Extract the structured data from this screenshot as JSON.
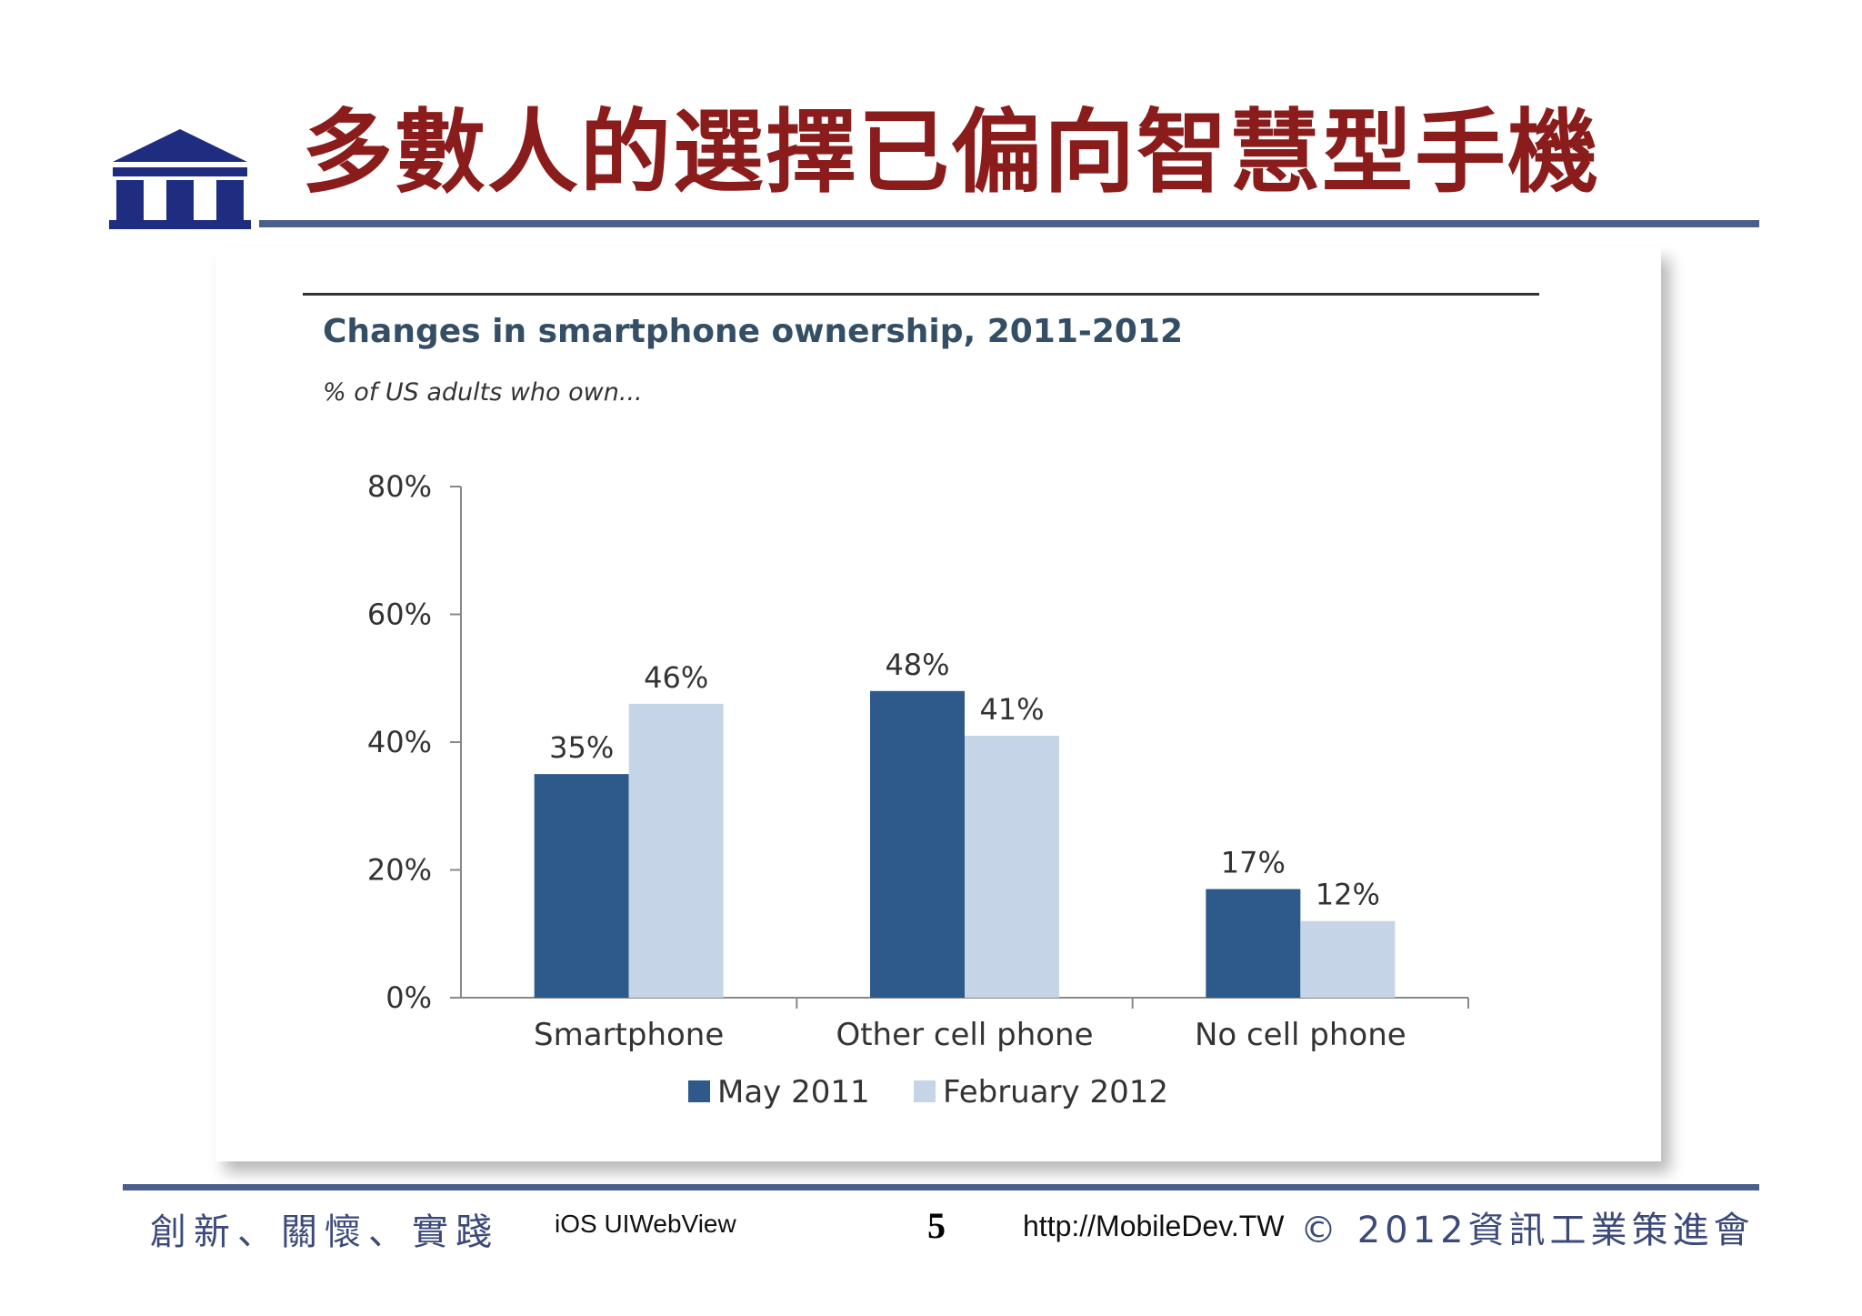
{
  "slide": {
    "title": "多數人的選擇已偏向智慧型手機",
    "logo_icon": "institute-building-logo",
    "accent_color": "#8b1c1c",
    "rule_color": "#4a5f8c"
  },
  "chart_data": {
    "type": "bar",
    "title": "Changes in smartphone ownership, 2011-2012",
    "subtitle": "% of US adults who own...",
    "categories": [
      "Smartphone",
      "Other cell phone",
      "No cell phone"
    ],
    "series": [
      {
        "name": "May 2011",
        "values": [
          35,
          48,
          17
        ],
        "labels": [
          "35%",
          "48%",
          "17%"
        ],
        "color": "#2d5a8a"
      },
      {
        "name": "February 2012",
        "values": [
          46,
          41,
          12
        ],
        "labels": [
          "46%",
          "41%",
          "12%"
        ],
        "color": "#c5d5e7"
      }
    ],
    "ylim": [
      0,
      80
    ],
    "y_ticks": [
      0,
      20,
      40,
      60,
      80
    ],
    "y_tick_labels": [
      "0%",
      "20%",
      "40%",
      "60%",
      "80%"
    ],
    "xlabel": "",
    "ylabel": "",
    "grid": false,
    "legend": "bottom-center"
  },
  "footer": {
    "motto": "創新、關懷、實踐",
    "topic": "iOS UIWebView",
    "page_number": "5",
    "url": "http://MobileDev.TW",
    "copyright": "© 2012資訊工業策進會"
  }
}
